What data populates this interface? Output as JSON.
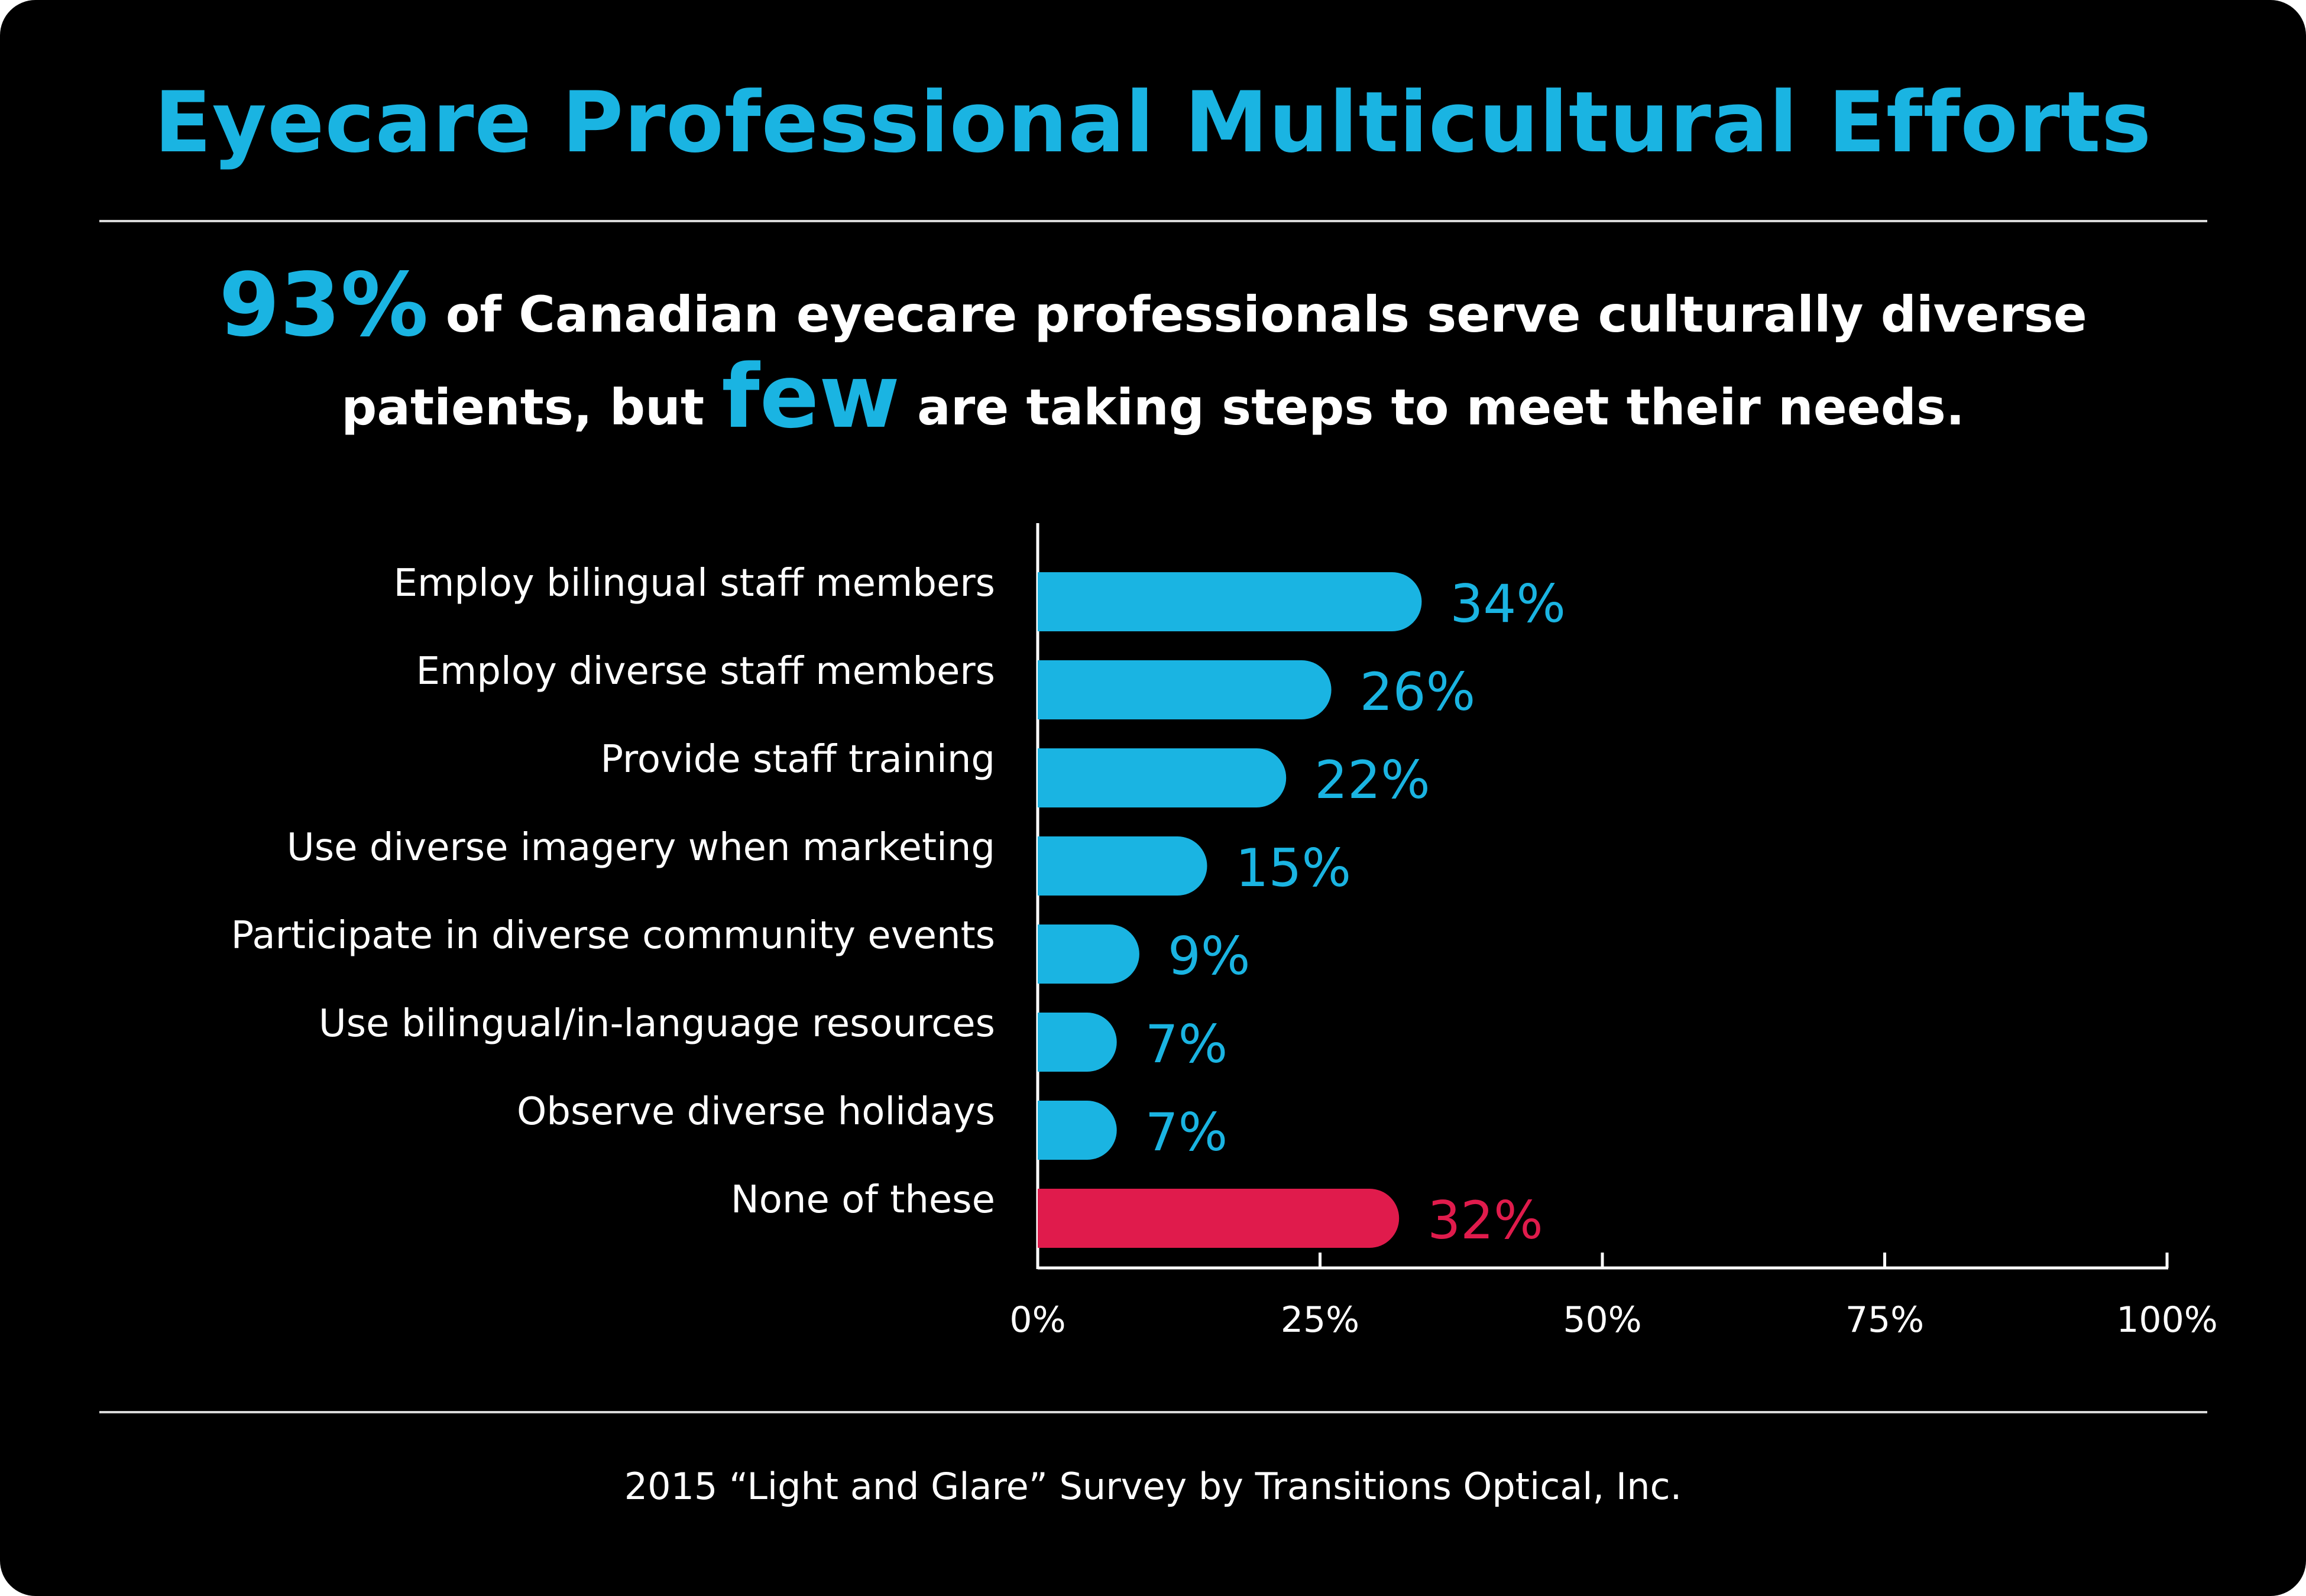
{
  "title": "Eyecare Professional Multicultural Efforts",
  "headline": {
    "stat": "93%",
    "line1_rest": " of Canadian eyecare professionals serve culturally diverse",
    "line2_start": "patients, but ",
    "emphasis": "few",
    "line2_end": " are taking steps to meet their needs."
  },
  "source": "2015 “Light and Glare” Survey by Transitions Optical, Inc.",
  "colors": {
    "accent": "#1ab4e2",
    "highlight": "#e01b4c",
    "background": "#000000",
    "text": "#ffffff"
  },
  "chart_data": {
    "type": "bar",
    "orientation": "horizontal",
    "categories": [
      "Employ bilingual staff members",
      "Employ diverse staff members",
      "Provide staff training",
      "Use diverse imagery when marketing",
      "Participate in diverse community events",
      "Use bilingual/in-language resources",
      "Observe diverse holidays",
      "None of these"
    ],
    "values": [
      34,
      26,
      22,
      15,
      9,
      7,
      7,
      32
    ],
    "value_labels": [
      "34%",
      "26%",
      "22%",
      "15%",
      "9%",
      "7%",
      "7%",
      "32%"
    ],
    "bar_colors": [
      "#1ab4e2",
      "#1ab4e2",
      "#1ab4e2",
      "#1ab4e2",
      "#1ab4e2",
      "#1ab4e2",
      "#1ab4e2",
      "#e01b4c"
    ],
    "xlim": [
      0,
      100
    ],
    "xticks": [
      0,
      25,
      50,
      75,
      100
    ],
    "xtick_labels": [
      "0%",
      "25%",
      "50%",
      "75%",
      "100%"
    ],
    "grid": false,
    "legend": false
  }
}
